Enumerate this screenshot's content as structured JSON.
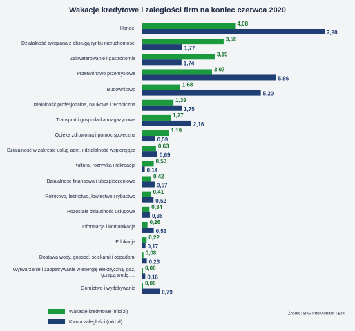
{
  "chart_data": {
    "type": "bar",
    "orientation": "horizontal",
    "title": "Wakacje kredytowe i zaległości firm na koniec czerwca 2020",
    "source": "Źródło: BIG InfoMonitor i BIK",
    "categories": [
      "Handel",
      "Działalność związana z obsługą rynku nieruchomości",
      "Zakwaterowanie i gastronomia",
      "Przetwórstwo przemysłowe",
      "Budownictwo",
      "Działalność profesjonalna, naukowa i techniczna",
      "Transport i gospodarka magazynowa",
      "Opieka zdrowotna i pomoc społeczna",
      "Działalność w zakresie usług adm. i działalność wspierająca",
      "Kultura, rozrywka i rekreacja",
      "Działalność finansowa i ubezpieczeniowa",
      "Rolnictwo, leśnictwo, łowiectwo i rybactwo",
      "Pozostała działalność usługowa",
      "Informacja i komunikacja",
      "Edukacja",
      "Dostawa wody, gospod. ściekami i odpadami",
      "Wytwarzanie i zaopatrywanie w energię elektryczną, gaz, gorącą wodę, ...",
      "Górnictwo i wydobywanie"
    ],
    "series": [
      {
        "name": "Wakacje kredytowe (mld zł)",
        "color": "#1a9a3c",
        "values": [
          4.08,
          3.58,
          3.19,
          3.07,
          1.68,
          1.39,
          1.27,
          1.19,
          0.63,
          0.53,
          0.42,
          0.41,
          0.34,
          0.26,
          0.22,
          0.08,
          0.06,
          0.06
        ],
        "value_labels": [
          "4,08",
          "3,58",
          "3,19",
          "3,07",
          "1,68",
          "1,39",
          "1,27",
          "1,19",
          "0,63",
          "0,53",
          "0,42",
          "0,41",
          "0,34",
          "0,26",
          "0,22",
          "0,08",
          "0,06",
          "0,06"
        ]
      },
      {
        "name": "Kwota zaległości (mld zł)",
        "color": "#1f3e73",
        "values": [
          7.98,
          1.77,
          1.74,
          5.86,
          5.2,
          1.75,
          2.16,
          0.59,
          0.69,
          0.14,
          0.57,
          0.52,
          0.36,
          0.53,
          0.17,
          0.23,
          0.16,
          0.79
        ],
        "value_labels": [
          "7,98",
          "1,77",
          "1,74",
          "5,86",
          "5,20",
          "1,75",
          "2,16",
          "0,59",
          "0,69",
          "0,14",
          "0,57",
          "0,52",
          "0,36",
          "0,53",
          "0,17",
          "0,23",
          "0,16",
          "0,79"
        ]
      }
    ]
  }
}
